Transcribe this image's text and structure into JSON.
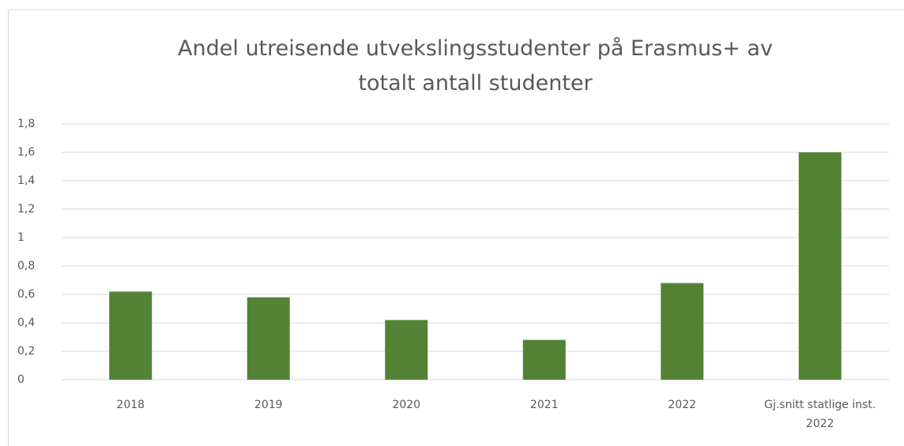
{
  "chart_data": {
    "type": "bar",
    "title": "Andel utreisende utvekslingsstudenter på Erasmus+ av\ntotalt antall studenter",
    "categories": [
      "2018",
      "2019",
      "2020",
      "2021",
      "2022",
      "Gj.snitt statlige inst. 2022"
    ],
    "values": [
      0.62,
      0.58,
      0.42,
      0.28,
      0.68,
      1.6
    ],
    "color": "#548235",
    "ylim": [
      0,
      1.8
    ],
    "yticks": [
      0,
      {
        "value": 0.2,
        "label": "0,2"
      },
      {
        "value": 0.4,
        "label": "0,4"
      },
      {
        "value": 0.6,
        "label": "0,6"
      },
      {
        "value": 0.8,
        "label": "0,8"
      },
      1,
      {
        "value": 1.2,
        "label": "1,2"
      },
      {
        "value": 1.4,
        "label": "1,4"
      },
      {
        "value": 1.6,
        "label": "1,6"
      },
      {
        "value": 1.8,
        "label": "1,8"
      }
    ],
    "grid": true
  }
}
